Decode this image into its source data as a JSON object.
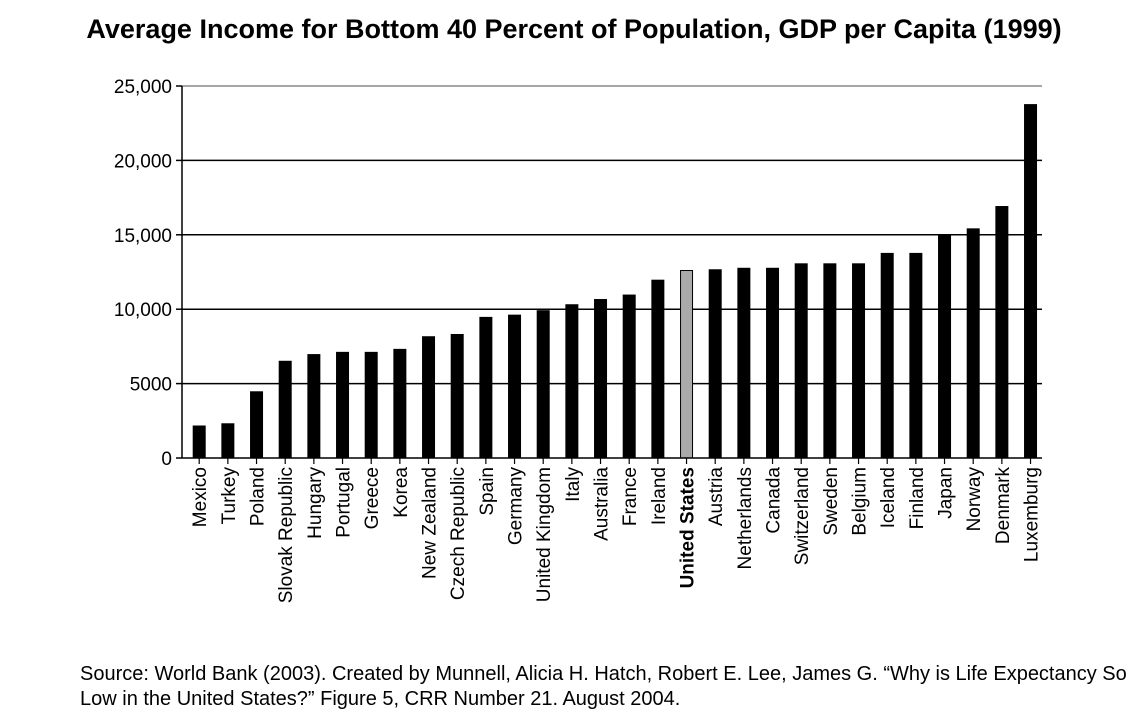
{
  "chart_data": {
    "type": "bar",
    "title": "Average Income for Bottom 40 Percent of Population, GDP per Capita (1999)",
    "categories": [
      "Mexico",
      "Turkey",
      "Poland",
      "Slovak Republic",
      "Hungary",
      "Portugal",
      "Greece",
      "Korea",
      "New Zealand",
      "Czech Republic",
      "Spain",
      "Germany",
      "United Kingdom",
      "Italy",
      "Australia",
      "France",
      "Ireland",
      "United States",
      "Austria",
      "Netherlands",
      "Canada",
      "Switzerland",
      "Sweden",
      "Belgium",
      "Iceland",
      "Finland",
      "Japan",
      "Norway",
      "Denmark",
      "Luxemburg"
    ],
    "values": [
      2150,
      2300,
      4450,
      6500,
      6950,
      7100,
      7100,
      7300,
      8150,
      8300,
      9450,
      9600,
      9900,
      10300,
      10650,
      10950,
      11950,
      12600,
      12650,
      12750,
      12750,
      13050,
      13050,
      13050,
      13750,
      13750,
      15000,
      15400,
      16900,
      23750
    ],
    "highlight": "United States",
    "highlight_color": "#aaaaaa",
    "bar_color": "#000000",
    "ylim": [
      0,
      25000
    ],
    "yticks": [
      0,
      5000,
      10000,
      15000,
      20000,
      25000
    ],
    "ytick_labels": [
      "0",
      "5000",
      "10,000",
      "15,000",
      "20,000",
      "25,000"
    ],
    "grid": true,
    "xlabel": "",
    "ylabel": ""
  },
  "source_note": "Source: World Bank (2003).  Created by Munnell, Alicia H.  Hatch, Robert E.  Lee, James G. “Why is Life Expectancy So Low in the United States?” Figure 5, CRR Number 21.  August 2004."
}
